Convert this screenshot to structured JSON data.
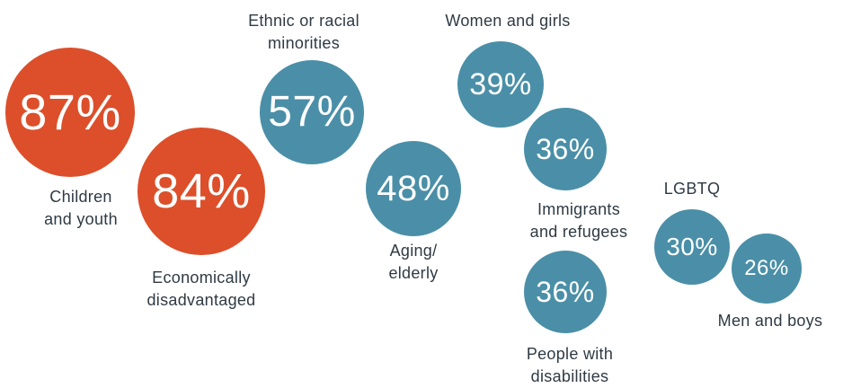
{
  "chart_data": {
    "type": "bubble",
    "title": "",
    "unit": "%",
    "colors": {
      "highlight": "#dc4f2a",
      "standard": "#4a8fa7"
    },
    "points": [
      {
        "category": "Children\nand youth",
        "value": 87,
        "display": "87%",
        "color": "#dc4f2a"
      },
      {
        "category": "Economically\ndisadvantaged",
        "value": 84,
        "display": "84%",
        "color": "#dc4f2a"
      },
      {
        "category": "Ethnic or racial\nminorities",
        "value": 57,
        "display": "57%",
        "color": "#4a8fa7"
      },
      {
        "category": "Aging/\nelderly",
        "value": 48,
        "display": "48%",
        "color": "#4a8fa7"
      },
      {
        "category": "Women and girls",
        "value": 39,
        "display": "39%",
        "color": "#4a8fa7"
      },
      {
        "category": "Immigrants\nand refugees",
        "value": 36,
        "display": "36%",
        "color": "#4a8fa7"
      },
      {
        "category": "People with\ndisabilities",
        "value": 36,
        "display": "36%",
        "color": "#4a8fa7"
      },
      {
        "category": "LGBTQ",
        "value": 30,
        "display": "30%",
        "color": "#4a8fa7"
      },
      {
        "category": "Men and boys",
        "value": 26,
        "display": "26%",
        "color": "#4a8fa7"
      }
    ]
  }
}
